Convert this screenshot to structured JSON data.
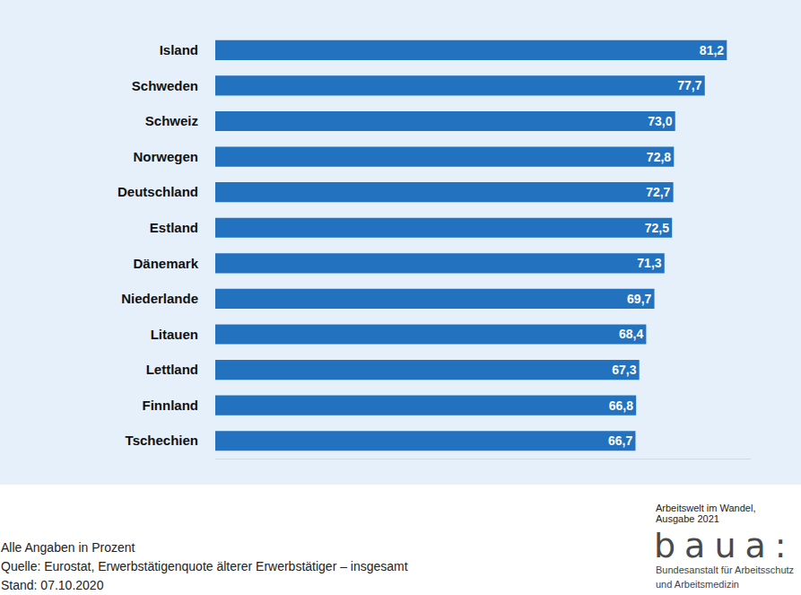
{
  "chart_data": {
    "type": "bar",
    "orientation": "horizontal",
    "categories": [
      "Island",
      "Schweden",
      "Schweiz",
      "Norwegen",
      "Deutschland",
      "Estland",
      "Dänemark",
      "Niederlande",
      "Litauen",
      "Lettland",
      "Finnland",
      "Tschechien"
    ],
    "values": [
      81.2,
      77.7,
      73.0,
      72.8,
      72.7,
      72.5,
      71.3,
      69.7,
      68.4,
      67.3,
      66.8,
      66.7
    ],
    "value_labels": [
      "81,2",
      "77,7",
      "73,0",
      "72,8",
      "72,7",
      "72,5",
      "71,3",
      "69,7",
      "68,4",
      "67,3",
      "66,8",
      "66,7"
    ],
    "color": "#2272bf",
    "data_labels": true,
    "xlim": [
      0,
      85
    ],
    "tick_labels": "y",
    "grid": false
  },
  "footer": {
    "notes": [
      "Alle Angaben in Prozent",
      "Quelle: Eurostat, Erwerbstätigenquote älterer Erwerbstätiger – insgesamt",
      "Stand: 07.10.2020"
    ],
    "publication": [
      "Arbeitswelt im Wandel,",
      "Ausgabe 2021"
    ],
    "logo": "baua:",
    "institution": [
      "Bundesanstalt für Arbeitsschutz",
      "und Arbeitsmedizin"
    ]
  }
}
